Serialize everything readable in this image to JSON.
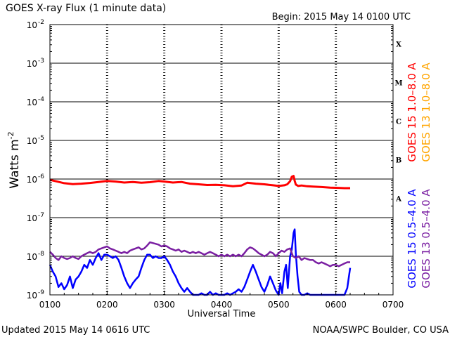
{
  "chart_data": {
    "type": "line",
    "title": "GOES X-ray Flux (1 minute data)",
    "begin_label": "Begin: 2015 May 14 0100 UTC",
    "xlabel": "Universal Time",
    "ylabel": "Watts m",
    "ylabel_exponent": "-2",
    "y_scale": "log",
    "ylim": [
      1e-09,
      0.01
    ],
    "y_ticks": [
      {
        "value": 1e-09,
        "mantissa": "10",
        "exponent": "-9"
      },
      {
        "value": 1e-08,
        "mantissa": "10",
        "exponent": "-8"
      },
      {
        "value": 1e-07,
        "mantissa": "10",
        "exponent": "-7"
      },
      {
        "value": 1e-06,
        "mantissa": "10",
        "exponent": "-6"
      },
      {
        "value": 1e-05,
        "mantissa": "10",
        "exponent": "-5"
      },
      {
        "value": 0.0001,
        "mantissa": "10",
        "exponent": "-4"
      },
      {
        "value": 0.001,
        "mantissa": "10",
        "exponent": "-3"
      },
      {
        "value": 0.01,
        "mantissa": "10",
        "exponent": "-2"
      }
    ],
    "x_unit": "hours UTC",
    "xlim": [
      1.0,
      7.0
    ],
    "x_ticks": [
      {
        "value": 1,
        "label": "0100"
      },
      {
        "value": 2,
        "label": "0200"
      },
      {
        "value": 3,
        "label": "0300"
      },
      {
        "value": 4,
        "label": "0400"
      },
      {
        "value": 5,
        "label": "0500"
      },
      {
        "value": 6,
        "label": "0600"
      },
      {
        "value": 7,
        "label": "0700"
      }
    ],
    "flare_classes": [
      {
        "label": "A",
        "value": 1e-07
      },
      {
        "label": "B",
        "value": 1e-06
      },
      {
        "label": "C",
        "value": 1e-05
      },
      {
        "label": "M",
        "value": 0.0001
      },
      {
        "label": "X",
        "value": 0.001
      }
    ],
    "grid": "horizontal at decades, dashed verticals at hours",
    "series": [
      {
        "name": "GOES 15 1.0–8.0 A",
        "color": "#ff0000",
        "x": [
          1.0,
          1.1,
          1.25,
          1.4,
          1.55,
          1.7,
          1.85,
          2.0,
          2.15,
          2.3,
          2.45,
          2.6,
          2.75,
          2.9,
          3.0,
          3.15,
          3.3,
          3.45,
          3.6,
          3.75,
          3.9,
          4.05,
          4.2,
          4.35,
          4.45,
          4.6,
          4.75,
          4.9,
          5.0,
          5.1,
          5.15,
          5.2,
          5.23,
          5.26,
          5.28,
          5.3,
          5.34,
          5.4,
          5.5,
          5.6,
          5.75,
          5.9,
          6.05,
          6.15,
          6.25
        ],
        "y": [
          9.5e-07,
          8.8e-07,
          7.8e-07,
          7.4e-07,
          7.6e-07,
          7.9e-07,
          8.4e-07,
          8.9e-07,
          8.6e-07,
          8.1e-07,
          8.4e-07,
          8e-07,
          8.3e-07,
          8.9e-07,
          8.6e-07,
          8.1e-07,
          8.4e-07,
          7.6e-07,
          7.3e-07,
          7e-07,
          7.1e-07,
          6.9e-07,
          6.5e-07,
          6.8e-07,
          8e-07,
          7.6e-07,
          7.3e-07,
          6.9e-07,
          6.6e-07,
          6.9e-07,
          7.3e-07,
          8.8e-07,
          1.15e-06,
          1.2e-06,
          9e-07,
          7.2e-07,
          6.6e-07,
          6.8e-07,
          6.5e-07,
          6.4e-07,
          6.2e-07,
          6e-07,
          5.9e-07,
          5.8e-07,
          5.8e-07
        ]
      },
      {
        "name": "GOES 13 1.0–8.0 A",
        "color": "#ffa500",
        "x": [],
        "y": []
      },
      {
        "name": "GOES 15 0.5–4.0 A",
        "color": "#0000ff",
        "x": [
          1.0,
          1.05,
          1.1,
          1.15,
          1.2,
          1.25,
          1.3,
          1.35,
          1.4,
          1.45,
          1.5,
          1.55,
          1.6,
          1.65,
          1.7,
          1.75,
          1.8,
          1.85,
          1.9,
          1.95,
          2.0,
          2.05,
          2.1,
          2.15,
          2.2,
          2.25,
          2.3,
          2.35,
          2.4,
          2.45,
          2.5,
          2.55,
          2.6,
          2.65,
          2.7,
          2.75,
          2.8,
          2.85,
          2.9,
          2.95,
          3.0,
          3.05,
          3.1,
          3.15,
          3.2,
          3.25,
          3.3,
          3.35,
          3.4,
          3.45,
          3.5,
          3.55,
          3.6,
          3.65,
          3.7,
          3.75,
          3.8,
          3.85,
          3.9,
          3.95,
          4.0,
          4.05,
          4.1,
          4.15,
          4.2,
          4.25,
          4.3,
          4.35,
          4.4,
          4.45,
          4.5,
          4.55,
          4.6,
          4.65,
          4.7,
          4.75,
          4.8,
          4.85,
          4.9,
          4.95,
          5.0,
          5.03,
          5.06,
          5.1,
          5.13,
          5.16,
          5.2,
          5.23,
          5.26,
          5.28,
          5.3,
          5.33,
          5.36,
          5.4,
          5.45,
          5.5,
          5.55,
          5.6,
          5.65,
          5.7,
          5.75,
          5.8,
          5.85,
          5.9,
          5.95,
          6.0,
          6.05,
          6.1,
          6.15,
          6.2,
          6.25
        ],
        "y": [
          6e-09,
          4e-09,
          3e-09,
          1.6e-09,
          2e-09,
          1.4e-09,
          1.8e-09,
          3e-09,
          1.5e-09,
          2.5e-09,
          3e-09,
          4e-09,
          6e-09,
          5e-09,
          8e-09,
          6e-09,
          9e-09,
          1.2e-08,
          8e-09,
          1.1e-08,
          1.1e-08,
          1e-08,
          9e-09,
          1e-08,
          8e-09,
          5e-09,
          3e-09,
          2e-09,
          1.5e-09,
          2e-09,
          2.5e-09,
          3e-09,
          5e-09,
          8e-09,
          1.1e-08,
          1.1e-08,
          9e-09,
          1e-08,
          9e-09,
          9e-09,
          1e-08,
          8e-09,
          6e-09,
          4e-09,
          3e-09,
          2e-09,
          1.5e-09,
          1.2e-09,
          1.5e-09,
          1.2e-09,
          1e-09,
          1e-09,
          1e-09,
          1.1e-09,
          1e-09,
          1e-09,
          1.2e-09,
          1e-09,
          1.1e-09,
          1e-09,
          1e-09,
          1e-09,
          1.1e-09,
          1e-09,
          1.1e-09,
          1.2e-09,
          1.4e-09,
          1.2e-09,
          1.6e-09,
          2.5e-09,
          4e-09,
          6e-09,
          4e-09,
          2.5e-09,
          1.6e-09,
          1.2e-09,
          1.8e-09,
          3e-09,
          2e-09,
          1.3e-09,
          1e-09,
          2e-09,
          1.1e-09,
          4e-09,
          6e-09,
          1.5e-09,
          1e-08,
          1.5e-08,
          4e-08,
          5e-08,
          1.2e-08,
          3e-09,
          1.2e-09,
          1e-09,
          1e-09,
          1.1e-09,
          1e-09,
          1e-09,
          1e-09,
          1e-09,
          1e-09,
          1e-09,
          1e-09,
          1e-09,
          1e-09,
          1e-09,
          1e-09,
          1e-09,
          1e-09,
          1.5e-09,
          5e-09
        ]
      },
      {
        "name": "GOES 13 0.5–4.0 A",
        "color": "#7a1fa2",
        "x": [
          1.0,
          1.05,
          1.1,
          1.15,
          1.2,
          1.25,
          1.3,
          1.35,
          1.4,
          1.45,
          1.5,
          1.55,
          1.6,
          1.65,
          1.7,
          1.75,
          1.8,
          1.85,
          1.9,
          1.95,
          2.0,
          2.05,
          2.1,
          2.15,
          2.2,
          2.25,
          2.3,
          2.35,
          2.4,
          2.45,
          2.5,
          2.55,
          2.6,
          2.65,
          2.7,
          2.75,
          2.8,
          2.85,
          2.9,
          2.95,
          3.0,
          3.05,
          3.1,
          3.15,
          3.2,
          3.25,
          3.3,
          3.35,
          3.4,
          3.45,
          3.5,
          3.55,
          3.6,
          3.65,
          3.7,
          3.75,
          3.8,
          3.85,
          3.9,
          3.95,
          4.0,
          4.05,
          4.1,
          4.15,
          4.2,
          4.25,
          4.3,
          4.35,
          4.4,
          4.45,
          4.5,
          4.55,
          4.6,
          4.65,
          4.7,
          4.75,
          4.8,
          4.85,
          4.9,
          4.95,
          5.0,
          5.05,
          5.1,
          5.15,
          5.2,
          5.25,
          5.3,
          5.35,
          5.4,
          5.45,
          5.5,
          5.55,
          5.6,
          5.65,
          5.7,
          5.75,
          5.8,
          5.85,
          5.9,
          5.95,
          6.0,
          6.05,
          6.1,
          6.15,
          6.2,
          6.25
        ],
        "y": [
          1.3e-08,
          1.1e-08,
          9e-09,
          8e-09,
          1e-08,
          9e-09,
          8.5e-09,
          9e-09,
          1e-08,
          9e-09,
          8.5e-09,
          1e-08,
          1.1e-08,
          1.2e-08,
          1.3e-08,
          1.2e-08,
          1.3e-08,
          1.5e-08,
          1.6e-08,
          1.7e-08,
          1.8e-08,
          1.6e-08,
          1.5e-08,
          1.4e-08,
          1.3e-08,
          1.2e-08,
          1.3e-08,
          1.2e-08,
          1.4e-08,
          1.5e-08,
          1.6e-08,
          1.7e-08,
          1.5e-08,
          1.6e-08,
          1.9e-08,
          2.3e-08,
          2.2e-08,
          2.1e-08,
          2e-08,
          1.8e-08,
          1.9e-08,
          1.8e-08,
          1.6e-08,
          1.5e-08,
          1.4e-08,
          1.5e-08,
          1.3e-08,
          1.4e-08,
          1.3e-08,
          1.2e-08,
          1.3e-08,
          1.2e-08,
          1.3e-08,
          1.2e-08,
          1.1e-08,
          1.2e-08,
          1.3e-08,
          1.2e-08,
          1.1e-08,
          1e-08,
          1.1e-08,
          1e-08,
          1.1e-08,
          1e-08,
          1.1e-08,
          1e-08,
          1.1e-08,
          1e-08,
          1.2e-08,
          1.5e-08,
          1.7e-08,
          1.6e-08,
          1.4e-08,
          1.2e-08,
          1.1e-08,
          1e-08,
          1.1e-08,
          1.3e-08,
          1.2e-08,
          1e-08,
          1.2e-08,
          1.4e-08,
          1.3e-08,
          1.5e-08,
          1.6e-08,
          1e-08,
          9e-09,
          1e-08,
          8e-09,
          9e-09,
          8.5e-09,
          8e-09,
          8e-09,
          7e-09,
          6.5e-09,
          7e-09,
          6.5e-09,
          6e-09,
          5.5e-09,
          6e-09,
          6e-09,
          5.5e-09,
          6e-09,
          6.5e-09,
          7e-09,
          7e-09
        ]
      }
    ]
  },
  "footer": {
    "updated": "Updated 2015 May 14 0616 UTC",
    "credit": "NOAA/SWPC Boulder, CO USA"
  }
}
